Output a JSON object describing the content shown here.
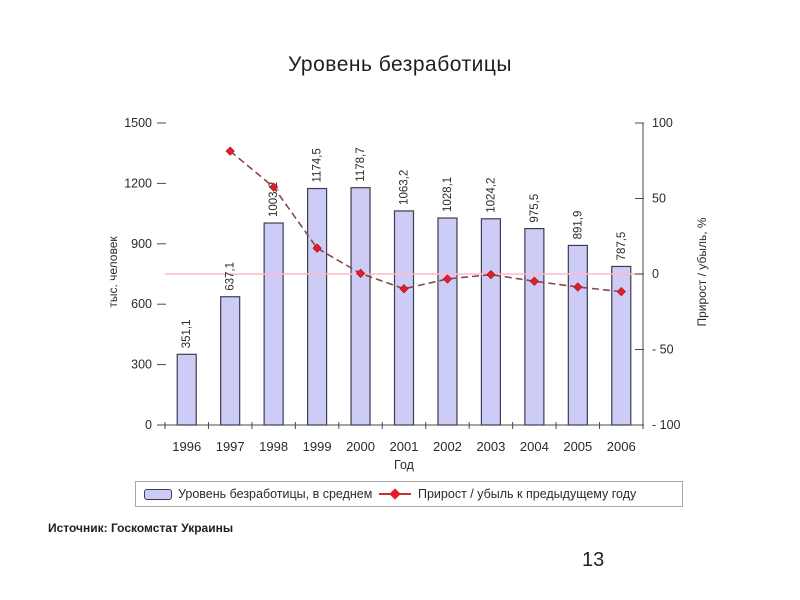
{
  "slide": {
    "title": "Уровень безработицы",
    "source": "Источник: Госкомстат Украины",
    "page_number": "13"
  },
  "chart_data": {
    "type": "bar+line",
    "title": "Уровень безработицы",
    "xlabel": "Год",
    "categories": [
      "1996",
      "1997",
      "1998",
      "1999",
      "2000",
      "2001",
      "2002",
      "2003",
      "2004",
      "2005",
      "2006"
    ],
    "series": [
      {
        "name": "Уровень безработицы, в среднем",
        "type": "bar",
        "axis": "left",
        "values": [
          351.1,
          637.1,
          1003.2,
          1174.5,
          1178.7,
          1063.2,
          1028.1,
          1024.2,
          975.5,
          891.9,
          787.5
        ],
        "labels": [
          "351,1",
          "637,1",
          "1003,2",
          "1174,5",
          "1178,7",
          "1063,2",
          "1028,1",
          "1024,2",
          "975,5",
          "891,9",
          "787,5"
        ]
      },
      {
        "name": "Прирост / убыль к предыдущему году",
        "type": "line",
        "axis": "right",
        "values": [
          null,
          81.4,
          57.5,
          17.1,
          0.4,
          -9.8,
          -3.3,
          -0.4,
          -4.8,
          -8.6,
          -11.7
        ]
      }
    ],
    "left_axis": {
      "title": "тыс. человек",
      "range": [
        0,
        1500
      ],
      "ticks": [
        0,
        300,
        600,
        900,
        1200,
        1500
      ],
      "tick_labels": [
        "0",
        "300",
        "600",
        "900",
        "1200",
        "1500"
      ]
    },
    "right_axis": {
      "title": "Прирост / убыль, %",
      "range": [
        -100,
        100
      ],
      "ticks": [
        100,
        50,
        0,
        -50,
        -100
      ],
      "tick_labels": [
        "100",
        "50",
        "0",
        "- 50",
        "- 100"
      ]
    },
    "legend_position": "bottom",
    "grid": "off",
    "colors": {
      "bar_fill": "#ccccf7",
      "bar_border": "#3d3d50",
      "line": "#8a4848",
      "marker": "#e51d28",
      "marker_edge": "#9e1212",
      "zero_line": "#ffb8ca",
      "axis": "#4a4a4a"
    }
  }
}
